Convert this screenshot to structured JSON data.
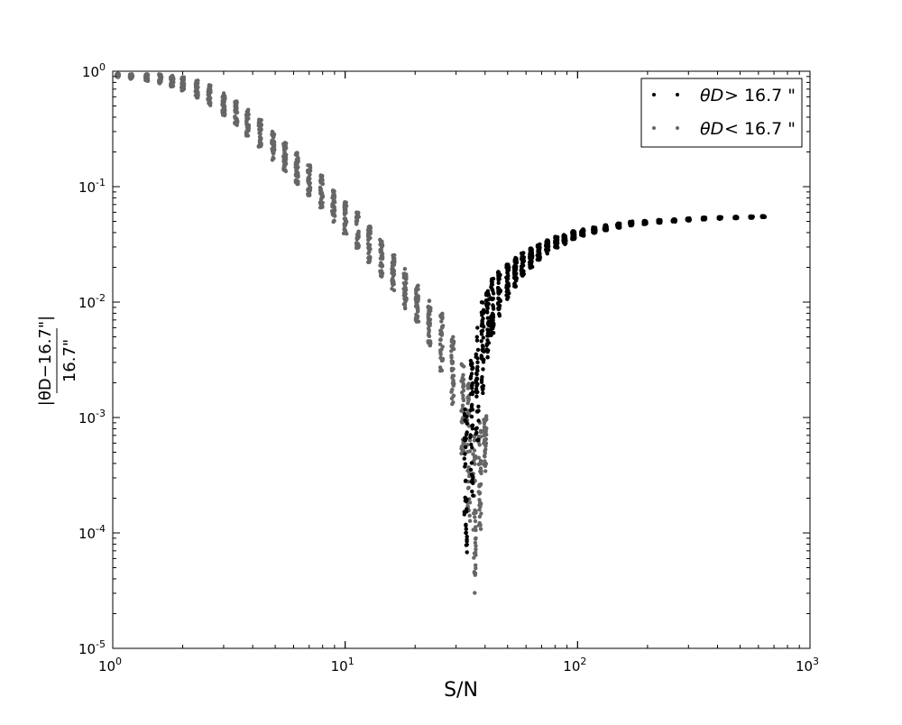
{
  "chart_data": {
    "type": "scatter",
    "title": "",
    "xlabel": "S/N",
    "ylabel": {
      "numerator": "|θD−16.7\"|",
      "denominator": "16.7\""
    },
    "x_scale": "log",
    "y_scale": "log",
    "xlim": [
      1,
      1000
    ],
    "ylim": [
      1e-05,
      1
    ],
    "grid": false,
    "x_ticks": [
      {
        "base": "10",
        "exp": "0"
      },
      {
        "base": "10",
        "exp": "1"
      },
      {
        "base": "10",
        "exp": "2"
      },
      {
        "base": "10",
        "exp": "3"
      }
    ],
    "y_ticks": [
      {
        "base": "10",
        "exp": "0"
      },
      {
        "base": "10",
        "exp": "-1"
      },
      {
        "base": "10",
        "exp": "-2"
      },
      {
        "base": "10",
        "exp": "-3"
      },
      {
        "base": "10",
        "exp": "-4"
      },
      {
        "base": "10",
        "exp": "-5"
      }
    ],
    "legend": {
      "placement": "top-right",
      "entries": [
        {
          "symbol": "θD",
          "text": "> 16.7 \"",
          "color": "#000000"
        },
        {
          "symbol": "θD",
          "text": "< 16.7 \"",
          "color": "#666666"
        }
      ]
    },
    "series": [
      {
        "color": "#666666",
        "condition": "θD < 16.7\"",
        "x": [
          1.05,
          1.2,
          1.4,
          1.6,
          1.8,
          2.0,
          2.3,
          2.6,
          3.0,
          3.4,
          3.8,
          4.3,
          4.9,
          5.5,
          6.2,
          7.0,
          7.9,
          8.9,
          10,
          11.3,
          12.7,
          14.3,
          16.1,
          18.1,
          20.4,
          23,
          26,
          29,
          32,
          34,
          36,
          38,
          40
        ],
        "y_center": [
          0.92,
          0.9,
          0.88,
          0.86,
          0.82,
          0.78,
          0.7,
          0.62,
          0.52,
          0.44,
          0.36,
          0.29,
          0.23,
          0.18,
          0.145,
          0.115,
          0.09,
          0.07,
          0.055,
          0.042,
          0.032,
          0.024,
          0.018,
          0.013,
          0.0095,
          0.0065,
          0.0045,
          0.0025,
          0.0012,
          0.0005,
          0.00015,
          0.0003,
          0.0006
        ],
        "y_spread": [
          0.03,
          0.04,
          0.06,
          0.08,
          0.1,
          0.12,
          0.15,
          0.18,
          0.2,
          0.22,
          0.24,
          0.25,
          0.26,
          0.27,
          0.28,
          0.28,
          0.29,
          0.3,
          0.3,
          0.31,
          0.32,
          0.33,
          0.34,
          0.35,
          0.36,
          0.4,
          0.5,
          0.6,
          0.8,
          1.2,
          1.4,
          1.0,
          0.5
        ]
      },
      {
        "color": "#000000",
        "condition": "θD > 16.7\"",
        "x": [
          33,
          35,
          37,
          39,
          41,
          43,
          46,
          50,
          54,
          58,
          63,
          68,
          74,
          81,
          88,
          96,
          105,
          118,
          132,
          150,
          170,
          195,
          225,
          260,
          300,
          350,
          410,
          480,
          560,
          630
        ],
        "y_center": [
          0.0003,
          0.0008,
          0.002,
          0.004,
          0.0065,
          0.009,
          0.012,
          0.015,
          0.018,
          0.021,
          0.024,
          0.027,
          0.03,
          0.033,
          0.035,
          0.038,
          0.04,
          0.042,
          0.044,
          0.046,
          0.048,
          0.049,
          0.05,
          0.051,
          0.052,
          0.053,
          0.0535,
          0.054,
          0.0545,
          0.055
        ],
        "y_spread": [
          1.3,
          1.2,
          1.0,
          0.8,
          0.6,
          0.5,
          0.4,
          0.32,
          0.26,
          0.21,
          0.17,
          0.14,
          0.12,
          0.1,
          0.085,
          0.07,
          0.06,
          0.05,
          0.045,
          0.04,
          0.035,
          0.03,
          0.025,
          0.022,
          0.02,
          0.018,
          0.015,
          0.013,
          0.012,
          0.01
        ]
      }
    ]
  }
}
